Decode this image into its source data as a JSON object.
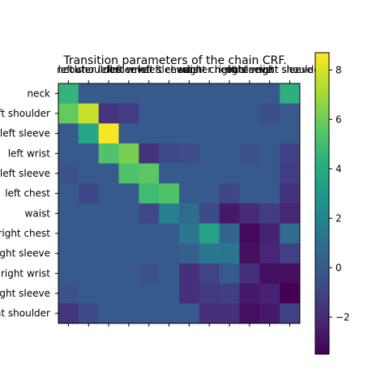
{
  "chart_data": {
    "type": "heatmap",
    "title": "Transition parameters of the chain CRF.",
    "row_labels": [
      "neck",
      "left shoulder",
      "outer left sleeve",
      "left wrist",
      "inner left sleeve",
      "left chest",
      "waist",
      "right chest",
      "inner right sleeve",
      "right wrist",
      "outer right sleeve",
      "right shoulder"
    ],
    "col_labels": [
      "neck",
      "left shoulder",
      "outer left sleeve",
      "left wrist",
      "inner left sleeve",
      "left chest",
      "waist",
      "right chest",
      "inner right sleeve",
      "right wrist",
      "outer right sleeve",
      "right shoulder"
    ],
    "values": [
      [
        4.5,
        0.0,
        0.0,
        0.0,
        0.0,
        0.0,
        0.0,
        0.0,
        0.0,
        0.0,
        0.0,
        4.3
      ],
      [
        5.8,
        7.7,
        -1.6,
        -1.3,
        0.0,
        0.0,
        0.0,
        0.0,
        0.0,
        0.0,
        -0.5,
        0.0
      ],
      [
        0.0,
        3.8,
        8.6,
        0.0,
        0.0,
        0.0,
        0.0,
        0.0,
        0.0,
        0.0,
        0.0,
        0.0
      ],
      [
        0.0,
        0.0,
        5.3,
        6.2,
        -1.7,
        -0.7,
        -0.6,
        0.0,
        0.0,
        -0.4,
        0.0,
        -1.1
      ],
      [
        -0.4,
        0.0,
        0.0,
        5.3,
        5.6,
        0.0,
        0.0,
        0.0,
        0.0,
        0.0,
        0.0,
        -1.3
      ],
      [
        0.0,
        -0.9,
        0.0,
        0.0,
        4.9,
        5.3,
        0.0,
        0.0,
        -0.9,
        0.0,
        0.0,
        -1.7
      ],
      [
        0.0,
        0.0,
        0.0,
        0.0,
        -0.8,
        1.8,
        0.9,
        -0.7,
        -2.7,
        -2.0,
        -1.3,
        -2.2
      ],
      [
        0.0,
        0.0,
        0.0,
        0.0,
        0.0,
        0.0,
        1.4,
        3.5,
        0.5,
        -3.2,
        -2.3,
        0.8
      ],
      [
        0.0,
        0.0,
        0.0,
        0.0,
        0.0,
        0.0,
        0.2,
        1.4,
        1.3,
        -3.0,
        -2.2,
        -1.1
      ],
      [
        0.0,
        0.0,
        0.0,
        0.0,
        -0.4,
        0.0,
        -1.8,
        -1.0,
        0.0,
        -1.8,
        -3.0,
        -3.0
      ],
      [
        -0.4,
        0.0,
        0.0,
        0.0,
        0.0,
        0.0,
        -1.8,
        -1.4,
        -1.2,
        -2.6,
        -2.3,
        -3.5
      ],
      [
        -1.6,
        -0.7,
        0.0,
        0.0,
        0.0,
        0.0,
        0.0,
        -1.8,
        -1.8,
        -3.0,
        -2.6,
        -1.1
      ]
    ],
    "colormap": "viridis",
    "colorbar": {
      "min": -3.5,
      "max": 8.7,
      "ticks": [
        8,
        6,
        4,
        2,
        0,
        -2
      ]
    }
  }
}
